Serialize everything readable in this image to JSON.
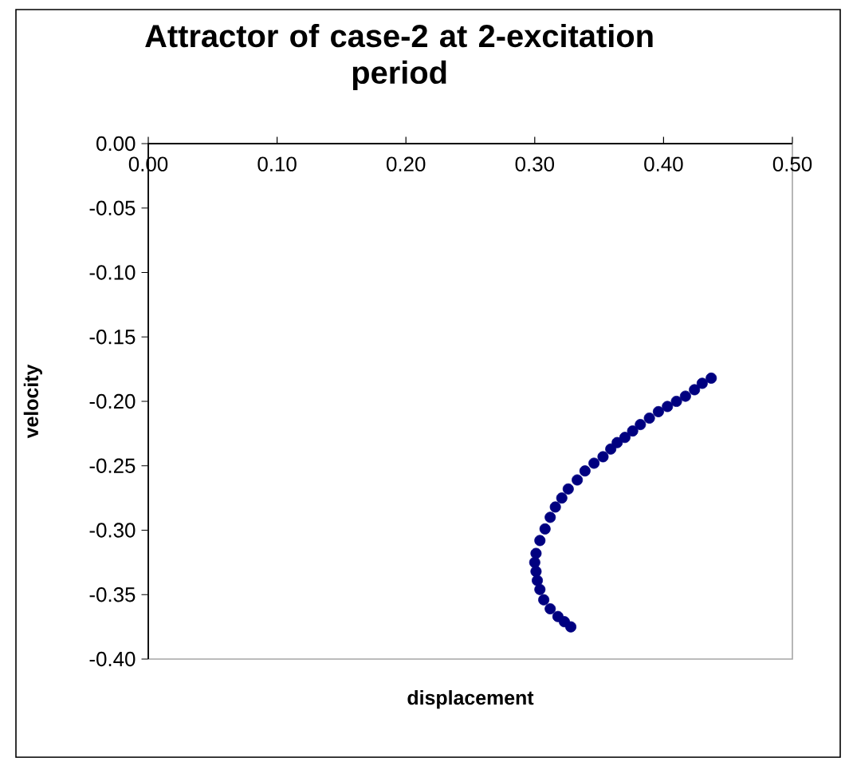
{
  "chart_data": {
    "type": "scatter",
    "title": "Attractor of case-2 at 2-excitation period",
    "xlabel": "displacement",
    "ylabel": "velocity",
    "x": [
      0.437,
      0.43,
      0.424,
      0.417,
      0.41,
      0.403,
      0.396,
      0.389,
      0.382,
      0.376,
      0.37,
      0.364,
      0.359,
      0.353,
      0.346,
      0.339,
      0.333,
      0.326,
      0.321,
      0.316,
      0.312,
      0.308,
      0.304,
      0.301,
      0.3,
      0.301,
      0.302,
      0.304,
      0.307,
      0.312,
      0.318,
      0.323,
      0.328
    ],
    "values": [
      -0.182,
      -0.186,
      -0.191,
      -0.196,
      -0.2,
      -0.204,
      -0.208,
      -0.213,
      -0.218,
      -0.223,
      -0.228,
      -0.232,
      -0.237,
      -0.243,
      -0.248,
      -0.254,
      -0.261,
      -0.268,
      -0.275,
      -0.282,
      -0.29,
      -0.299,
      -0.308,
      -0.318,
      -0.325,
      -0.332,
      -0.339,
      -0.346,
      -0.354,
      -0.361,
      -0.367,
      -0.371,
      -0.375
    ],
    "color": "#000080",
    "marker": "circle",
    "grid": false,
    "xlim": [
      0,
      0.5
    ],
    "ylim": [
      -0.4,
      0
    ],
    "xticks": [
      {
        "value": 0,
        "label": "0.00"
      },
      {
        "value": 0.1,
        "label": "0.10"
      },
      {
        "value": 0.2,
        "label": "0.20"
      },
      {
        "value": 0.3,
        "label": "0.30"
      },
      {
        "value": 0.4,
        "label": "0.40"
      },
      {
        "value": 0.5,
        "label": "0.50"
      }
    ],
    "yticks": [
      {
        "value": 0,
        "label": "0.00"
      },
      {
        "value": -0.05,
        "label": "-0.05"
      },
      {
        "value": -0.1,
        "label": "-0.10"
      },
      {
        "value": -0.15,
        "label": "-0.15"
      },
      {
        "value": -0.2,
        "label": "-0.20"
      },
      {
        "value": -0.25,
        "label": "-0.25"
      },
      {
        "value": -0.3,
        "label": "-0.30"
      },
      {
        "value": -0.35,
        "label": "-0.35"
      },
      {
        "value": -0.4,
        "label": "-0.40"
      }
    ]
  }
}
